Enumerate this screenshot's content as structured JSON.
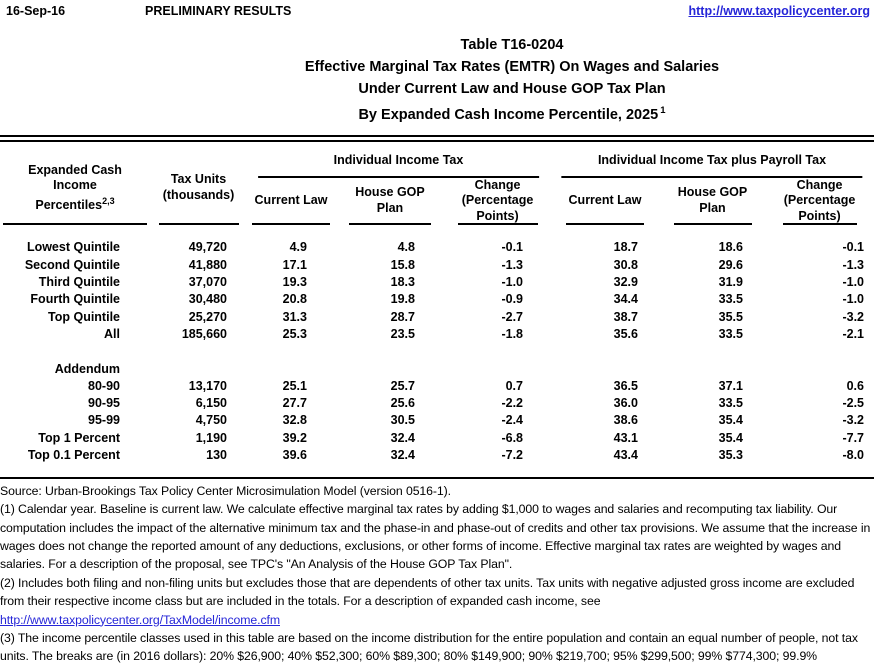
{
  "page_header": {
    "date": "16-Sep-16",
    "status": "PRELIMINARY RESULTS",
    "website": "http://www.taxpolicycenter.org"
  },
  "title": {
    "line1": "Table T16-0204",
    "line2": "Effective Marginal Tax Rates (EMTR) On Wages and Salaries",
    "line3": "Under Current Law and House GOP Tax Plan",
    "line4": "By Expanded Cash Income Percentile, 2025",
    "line4_sup": "1"
  },
  "table": {
    "col1_header": "Expanded Cash Income Percentiles",
    "col1_sup": "2,3",
    "col2_header": "Tax Units (thousands)",
    "groups": [
      {
        "label": "Individual Income Tax"
      },
      {
        "label": "Individual Income Tax plus Payroll Tax"
      }
    ],
    "sub_headers": [
      "Current Law",
      "House GOP Plan",
      "Change (Percentage Points)",
      "Current Law",
      "House GOP Plan",
      "Change (Percentage Points)"
    ],
    "rows": [
      {
        "label": "Lowest Quintile",
        "values": [
          "49,720",
          "4.9",
          "4.8",
          "-0.1",
          "18.7",
          "18.6",
          "-0.1"
        ]
      },
      {
        "label": "Second Quintile",
        "values": [
          "41,880",
          "17.1",
          "15.8",
          "-1.3",
          "30.8",
          "29.6",
          "-1.3"
        ]
      },
      {
        "label": "Third Quintile",
        "values": [
          "37,070",
          "19.3",
          "18.3",
          "-1.0",
          "32.9",
          "31.9",
          "-1.0"
        ]
      },
      {
        "label": "Fourth Quintile",
        "values": [
          "30,480",
          "20.8",
          "19.8",
          "-0.9",
          "34.4",
          "33.5",
          "-1.0"
        ]
      },
      {
        "label": "Top Quintile",
        "values": [
          "25,270",
          "31.3",
          "28.7",
          "-2.7",
          "38.7",
          "35.5",
          "-3.2"
        ]
      },
      {
        "label": "All",
        "values": [
          "185,660",
          "25.3",
          "23.5",
          "-1.8",
          "35.6",
          "33.5",
          "-2.1"
        ]
      },
      {
        "label": "Addendum",
        "values": [
          "",
          "",
          "",
          "",
          "",
          "",
          ""
        ],
        "spacer_before": true
      },
      {
        "label": "80-90",
        "values": [
          "13,170",
          "25.1",
          "25.7",
          "0.7",
          "36.5",
          "37.1",
          "0.6"
        ]
      },
      {
        "label": "90-95",
        "values": [
          "6,150",
          "27.7",
          "25.6",
          "-2.2",
          "36.0",
          "33.5",
          "-2.5"
        ]
      },
      {
        "label": "95-99",
        "values": [
          "4,750",
          "32.8",
          "30.5",
          "-2.4",
          "38.6",
          "35.4",
          "-3.2"
        ]
      },
      {
        "label": "Top 1 Percent",
        "values": [
          "1,190",
          "39.2",
          "32.4",
          "-6.8",
          "43.1",
          "35.4",
          "-7.7"
        ]
      },
      {
        "label": "Top 0.1 Percent",
        "values": [
          "130",
          "39.6",
          "32.4",
          "-7.2",
          "43.4",
          "35.3",
          "-8.0"
        ]
      }
    ]
  },
  "footnotes": {
    "source": "Source: Urban-Brookings Tax Policy Center Microsimulation Model (version 0516-1).",
    "note1": "(1) Calendar year. Baseline is current law. We calculate effective marginal tax rates by adding $1,000 to wages and salaries and recomputing tax liability. Our computation includes the impact of the alternative minimum tax and the phase-in and phase-out of credits and other tax provisions. We assume that the increase in wages does not change the reported amount of any deductions, exclusions, or other forms of income. Effective marginal tax rates are weighted by wages and salaries. For a description of the proposal, see TPC's \"An Analysis of the House GOP Tax Plan\".",
    "note2": "(2) Includes both filing and non-filing units but excludes those that are dependents of other tax units. Tax units with negative adjusted gross income are excluded from their respective income class but are included in the totals. For a description of expanded cash income, see",
    "note2_link": "http://www.taxpolicycenter.org/TaxModel/income.cfm",
    "note3": "(3) The income percentile classes used in this table are based on the income distribution for the entire population and contain an equal number of people, not tax units. The breaks are (in 2016 dollars): 20% $26,900; 40% $52,300; 60% $89,300; 80% $149,900; 90% $219,700; 95% $299,500; 99% $774,300; 99.9%"
  },
  "colors": {
    "link_blue": "#2626d8",
    "text": "#000000",
    "background": "#ffffff"
  }
}
